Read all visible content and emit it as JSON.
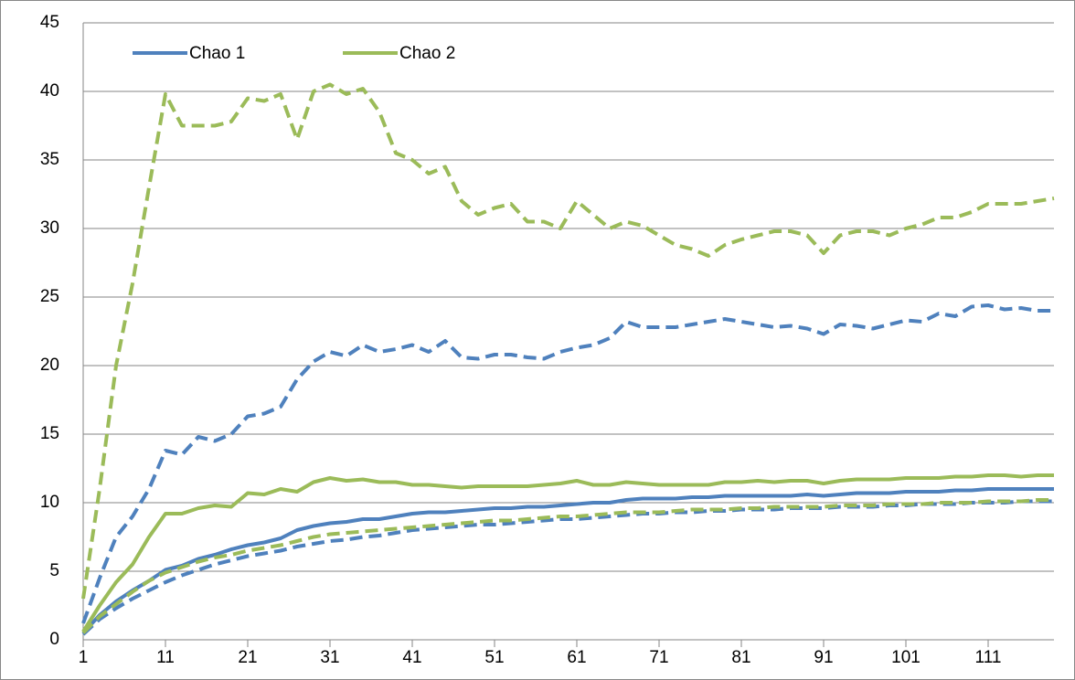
{
  "chart_data": {
    "type": "line",
    "x": [
      1,
      3,
      5,
      7,
      9,
      11,
      13,
      15,
      17,
      19,
      21,
      23,
      25,
      27,
      29,
      31,
      33,
      35,
      37,
      39,
      41,
      43,
      45,
      47,
      49,
      51,
      53,
      55,
      57,
      59,
      61,
      63,
      65,
      67,
      69,
      71,
      73,
      75,
      77,
      79,
      81,
      83,
      85,
      87,
      89,
      91,
      93,
      95,
      97,
      99,
      101,
      103,
      105,
      107,
      109,
      111,
      113,
      115,
      117,
      119
    ],
    "xlim": [
      1,
      119
    ],
    "xticks": [
      1,
      11,
      21,
      31,
      41,
      51,
      61,
      71,
      81,
      91,
      101,
      111
    ],
    "ylim": [
      0,
      45
    ],
    "yticks": [
      0,
      5,
      10,
      15,
      20,
      25,
      30,
      35,
      40,
      45
    ],
    "grid": true,
    "series": [
      {
        "name": "Chao 1",
        "color": "#4f81bd",
        "dashed": false,
        "values": [
          0.5,
          1.8,
          2.8,
          3.6,
          4.3,
          5.1,
          5.4,
          5.9,
          6.2,
          6.6,
          6.9,
          7.1,
          7.4,
          8,
          8.3,
          8.5,
          8.6,
          8.8,
          8.8,
          9,
          9.2,
          9.3,
          9.3,
          9.4,
          9.5,
          9.6,
          9.6,
          9.7,
          9.7,
          9.8,
          9.9,
          10,
          10,
          10.2,
          10.3,
          10.3,
          10.3,
          10.4,
          10.4,
          10.5,
          10.5,
          10.5,
          10.5,
          10.5,
          10.6,
          10.5,
          10.6,
          10.7,
          10.7,
          10.7,
          10.8,
          10.8,
          10.8,
          10.9,
          10.9,
          11,
          11,
          11,
          11,
          11
        ]
      },
      {
        "name": "Chao 2",
        "color": "#9bbb59",
        "dashed": false,
        "values": [
          0.6,
          2.5,
          4.2,
          5.5,
          7.5,
          9.2,
          9.2,
          9.6,
          9.8,
          9.7,
          10.7,
          10.6,
          11,
          10.8,
          11.5,
          11.8,
          11.6,
          11.7,
          11.5,
          11.5,
          11.3,
          11.3,
          11.2,
          11.1,
          11.2,
          11.2,
          11.2,
          11.2,
          11.3,
          11.4,
          11.6,
          11.3,
          11.3,
          11.5,
          11.4,
          11.3,
          11.3,
          11.3,
          11.3,
          11.5,
          11.5,
          11.6,
          11.5,
          11.6,
          11.6,
          11.4,
          11.6,
          11.7,
          11.7,
          11.7,
          11.8,
          11.8,
          11.8,
          11.9,
          11.9,
          12,
          12,
          11.9,
          12,
          12
        ]
      },
      {
        "color": "#4f81bd",
        "dashed": true,
        "values": [
          1.2,
          4.5,
          7.5,
          9,
          11,
          13.8,
          13.5,
          14.8,
          14.5,
          15,
          16.3,
          16.5,
          17,
          19,
          20.3,
          21,
          20.7,
          21.5,
          21,
          21.2,
          21.5,
          21,
          21.8,
          20.6,
          20.5,
          20.8,
          20.8,
          20.6,
          20.5,
          21,
          21.3,
          21.5,
          22,
          23.2,
          22.8,
          22.8,
          22.8,
          23,
          23.2,
          23.4,
          23.2,
          23,
          22.8,
          22.9,
          22.7,
          22.3,
          23,
          22.9,
          22.7,
          23,
          23.3,
          23.2,
          23.8,
          23.6,
          24.3,
          24.4,
          24.1,
          24.2,
          24,
          24
        ]
      },
      {
        "color": "#9bbb59",
        "dashed": true,
        "values": [
          3,
          11,
          20,
          26,
          33,
          39.8,
          37.5,
          37.5,
          37.5,
          37.8,
          39.5,
          39.3,
          39.8,
          36.5,
          40,
          40.5,
          39.8,
          40.2,
          38.5,
          35.5,
          35,
          34,
          34.5,
          32,
          31,
          31.5,
          31.8,
          30.5,
          30.5,
          30,
          32,
          31,
          30,
          30.5,
          30.2,
          29.5,
          28.8,
          28.5,
          28,
          28.8,
          29.2,
          29.5,
          29.8,
          29.8,
          29.5,
          28.2,
          29.5,
          29.8,
          29.8,
          29.5,
          30,
          30.3,
          30.8,
          30.8,
          31.2,
          31.8,
          31.8,
          31.8,
          32,
          32.2
        ]
      },
      {
        "color": "#4f81bd",
        "dashed": true,
        "values": [
          0.4,
          1.5,
          2.3,
          3,
          3.6,
          4.2,
          4.7,
          5.1,
          5.5,
          5.8,
          6.1,
          6.3,
          6.5,
          6.8,
          7,
          7.2,
          7.3,
          7.5,
          7.6,
          7.8,
          8,
          8.1,
          8.2,
          8.3,
          8.4,
          8.4,
          8.5,
          8.6,
          8.7,
          8.8,
          8.8,
          8.9,
          9,
          9.1,
          9.2,
          9.2,
          9.3,
          9.3,
          9.4,
          9.4,
          9.5,
          9.5,
          9.5,
          9.6,
          9.6,
          9.6,
          9.7,
          9.7,
          9.7,
          9.8,
          9.8,
          9.9,
          9.9,
          9.9,
          10,
          10,
          10,
          10.1,
          10.1,
          10.1
        ]
      },
      {
        "color": "#9bbb59",
        "dashed": true,
        "values": [
          0.5,
          1.7,
          2.6,
          3.5,
          4.3,
          4.9,
          5.3,
          5.7,
          6,
          6.2,
          6.5,
          6.7,
          6.9,
          7.2,
          7.5,
          7.7,
          7.8,
          7.9,
          8,
          8.1,
          8.2,
          8.3,
          8.4,
          8.5,
          8.6,
          8.7,
          8.7,
          8.8,
          8.9,
          9,
          9,
          9.1,
          9.2,
          9.3,
          9.3,
          9.3,
          9.4,
          9.5,
          9.5,
          9.5,
          9.6,
          9.6,
          9.7,
          9.7,
          9.7,
          9.7,
          9.8,
          9.8,
          9.8,
          9.9,
          9.9,
          9.9,
          10,
          10,
          10,
          10.1,
          10.1,
          10.1,
          10.2,
          10.2
        ]
      }
    ]
  }
}
